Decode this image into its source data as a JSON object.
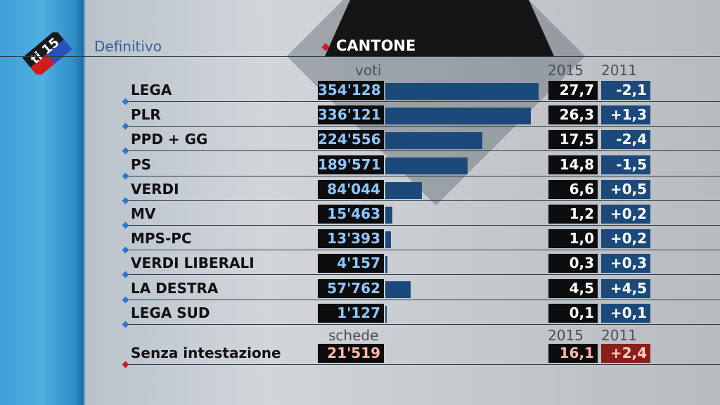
{
  "header": {
    "status": "Definitivo",
    "title": "CANTONE",
    "logo_text": "ti 15"
  },
  "columns": {
    "votes": "voti",
    "year_current": "2015",
    "year_previous": "2011",
    "ballots": "schede"
  },
  "colors": {
    "bar": "#1b4a7a",
    "accent_red": "#d01c1c",
    "diff_special": "#8a1f1a"
  },
  "max_votes": 354128,
  "rows": [
    {
      "name": "LEGA",
      "votes": "354'128",
      "votes_num": 354128,
      "pct": "27,7",
      "diff": "-2,1"
    },
    {
      "name": "PLR",
      "votes": "336'121",
      "votes_num": 336121,
      "pct": "26,3",
      "diff": "+1,3"
    },
    {
      "name": "PPD + GG",
      "votes": "224'556",
      "votes_num": 224556,
      "pct": "17,5",
      "diff": "-2,4"
    },
    {
      "name": "PS",
      "votes": "189'571",
      "votes_num": 189571,
      "pct": "14,8",
      "diff": "-1,5"
    },
    {
      "name": "VERDI",
      "votes": "84'044",
      "votes_num": 84044,
      "pct": "6,6",
      "diff": "+0,5"
    },
    {
      "name": "MV",
      "votes": "15'463",
      "votes_num": 15463,
      "pct": "1,2",
      "diff": "+0,2"
    },
    {
      "name": "MPS-PC",
      "votes": "13'393",
      "votes_num": 13393,
      "pct": "1,0",
      "diff": "+0,2"
    },
    {
      "name": "VERDI LIBERALI",
      "votes": "4'157",
      "votes_num": 4157,
      "pct": "0,3",
      "diff": "+0,3"
    },
    {
      "name": "LA DESTRA",
      "votes": "57'762",
      "votes_num": 57762,
      "pct": "4,5",
      "diff": "+4,5"
    },
    {
      "name": "LEGA SUD",
      "votes": "1'127",
      "votes_num": 1127,
      "pct": "0,1",
      "diff": "+0,1"
    }
  ],
  "blank": {
    "name": "Senza intestazione",
    "votes": "21'519",
    "pct": "16,1",
    "diff": "+2,4"
  }
}
